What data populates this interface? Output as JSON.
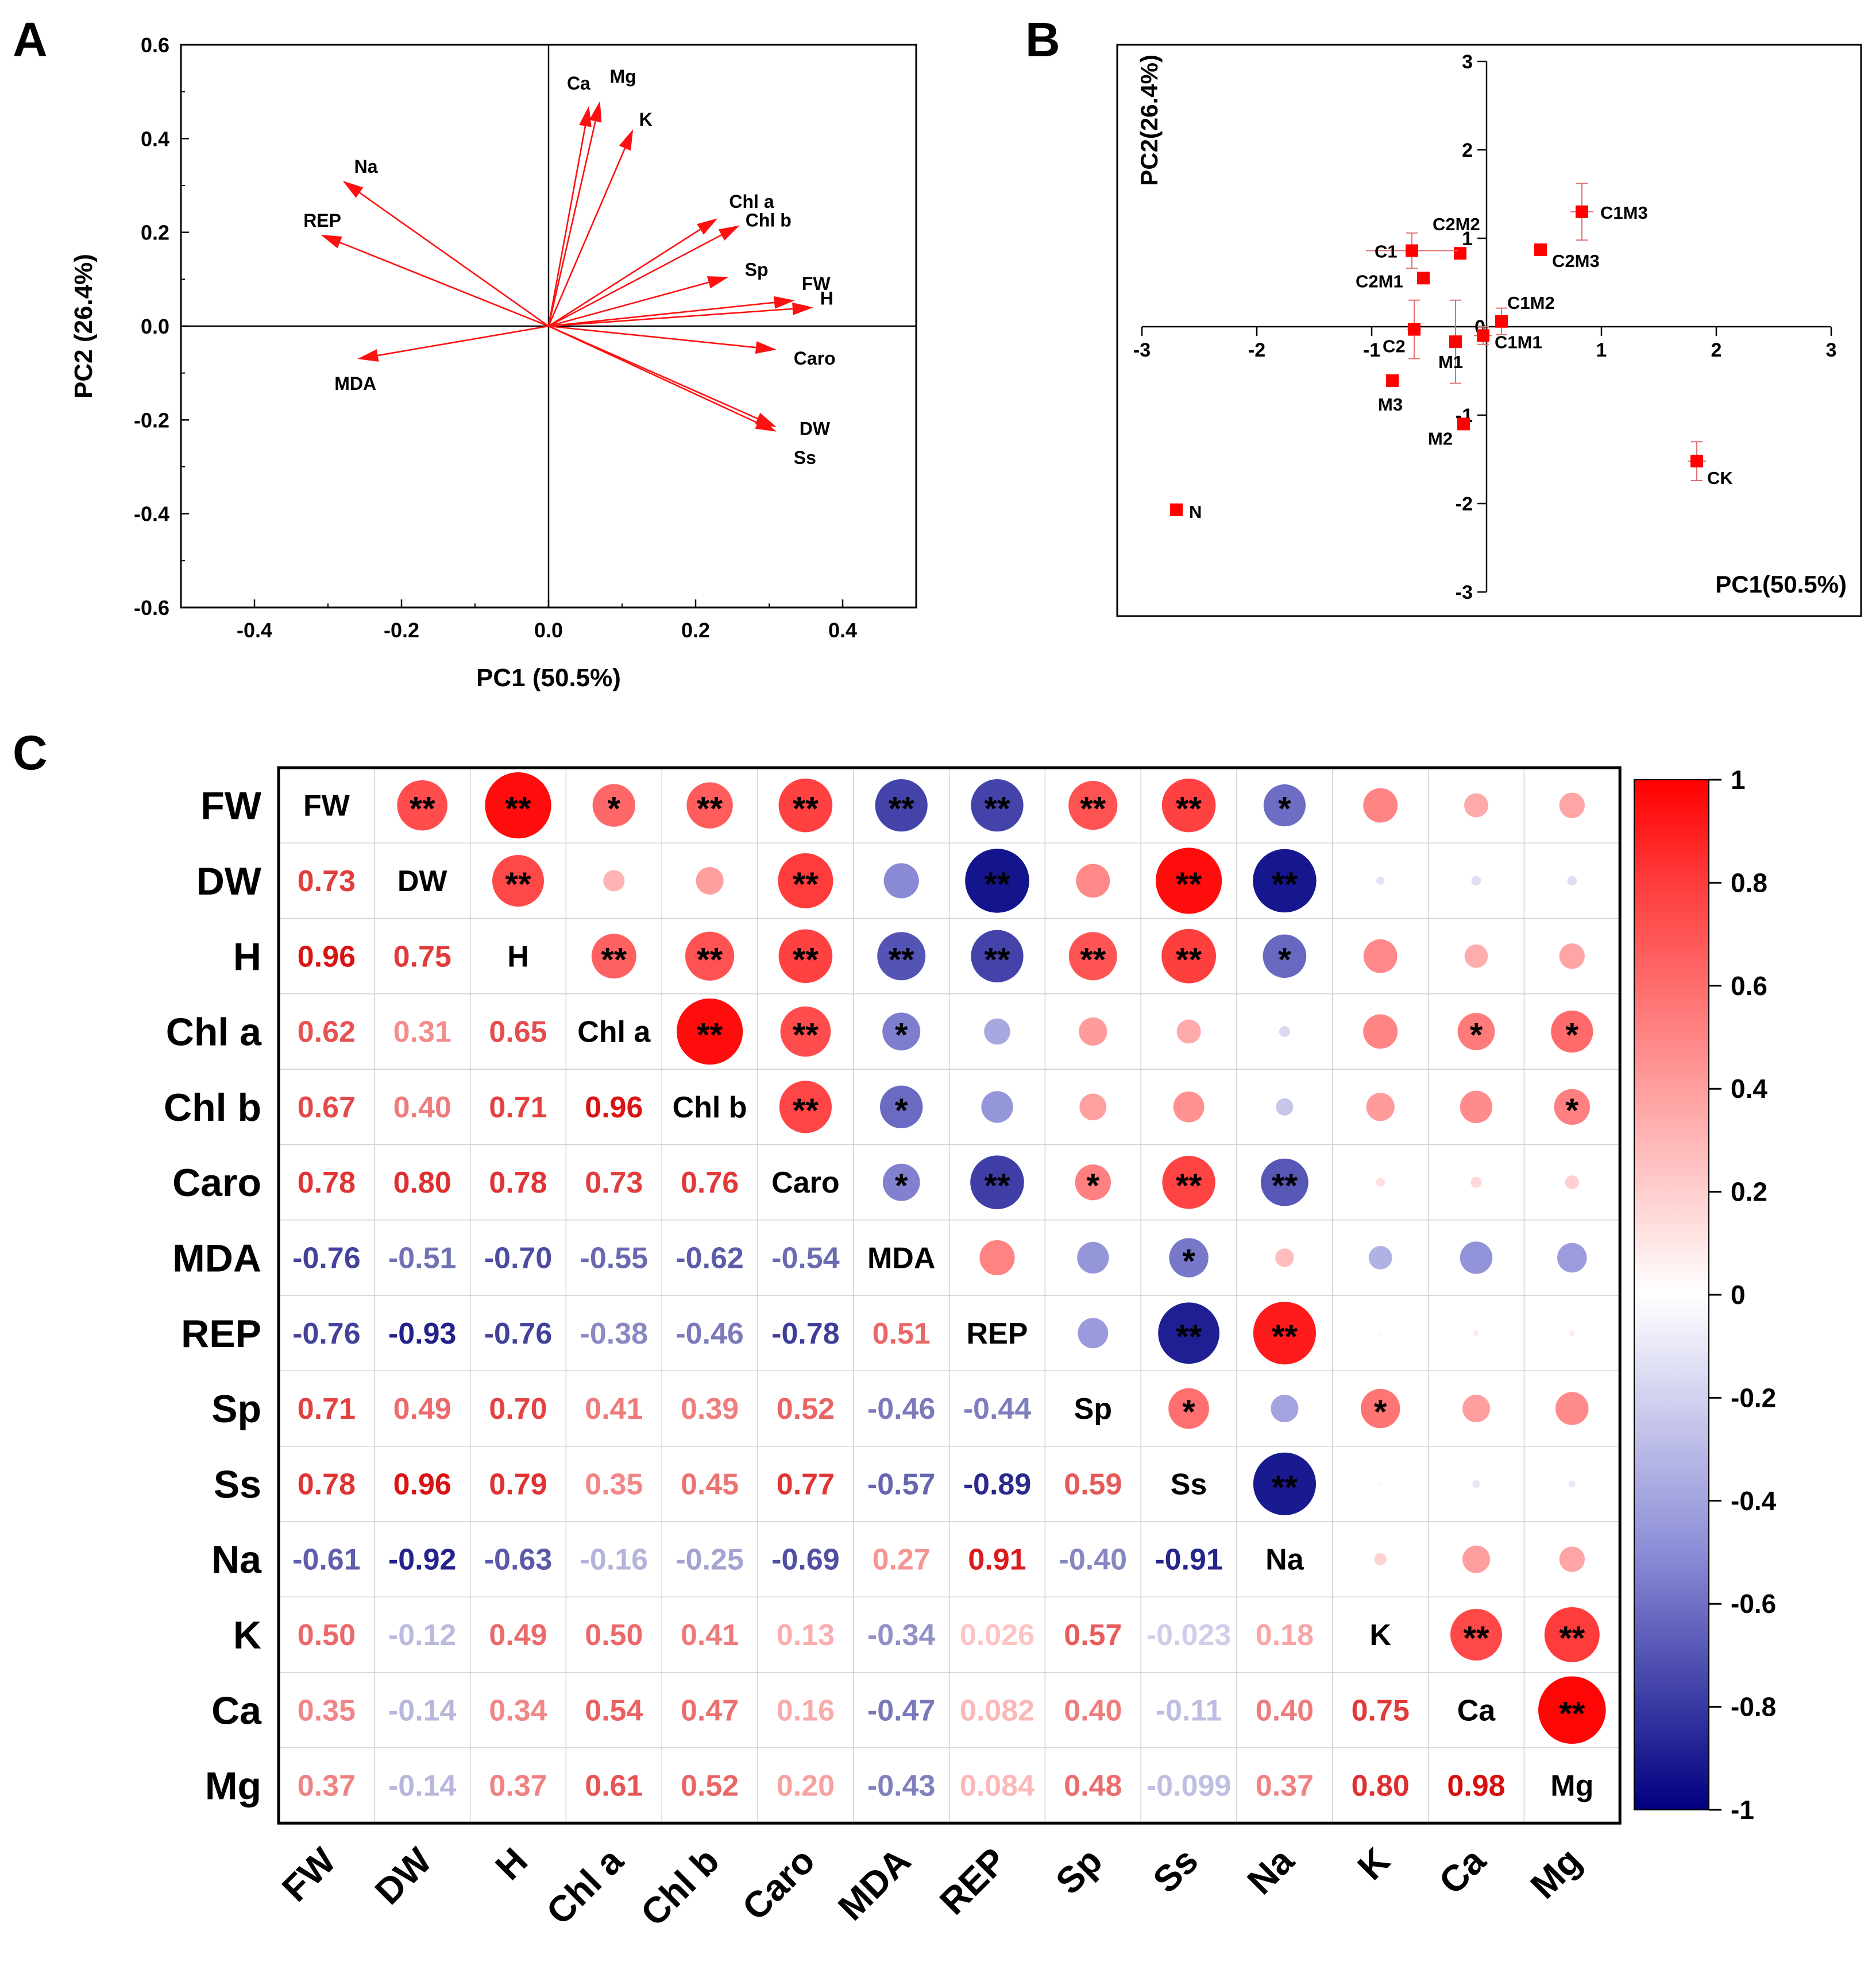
{
  "chart_data": [
    {
      "panel": "A",
      "type": "biplot-vectors",
      "xlabel": "PC1 (50.5%)",
      "ylabel": "PC2 (26.4%)",
      "xlim": [
        -0.5,
        0.5
      ],
      "ylim": [
        -0.6,
        0.6
      ],
      "xticks": [
        -0.4,
        -0.2,
        0.0,
        0.2,
        0.4
      ],
      "xtick_labels": [
        "-0.4",
        "-0.2",
        "0.0",
        "0.2",
        "0.4"
      ],
      "yticks": [
        -0.6,
        -0.4,
        -0.2,
        0.0,
        0.2,
        0.4,
        0.6
      ],
      "ytick_labels": [
        "-0.6",
        "-0.4",
        "-0.2",
        "0.0",
        "0.2",
        "0.4",
        "0.6"
      ],
      "vectors": [
        {
          "label": "Ca",
          "x": 0.055,
          "y": 0.47
        },
        {
          "label": "Mg",
          "x": 0.07,
          "y": 0.48
        },
        {
          "label": "K",
          "x": 0.115,
          "y": 0.42
        },
        {
          "label": "Na",
          "x": -0.28,
          "y": 0.31
        },
        {
          "label": "REP",
          "x": -0.31,
          "y": 0.195
        },
        {
          "label": "Chl a",
          "x": 0.23,
          "y": 0.23
        },
        {
          "label": "Chl b",
          "x": 0.26,
          "y": 0.215
        },
        {
          "label": "Sp",
          "x": 0.245,
          "y": 0.105
        },
        {
          "label": "FW",
          "x": 0.335,
          "y": 0.055
        },
        {
          "label": "H",
          "x": 0.36,
          "y": 0.04
        },
        {
          "label": "Caro",
          "x": 0.31,
          "y": -0.05
        },
        {
          "label": "MDA",
          "x": -0.26,
          "y": -0.07
        },
        {
          "label": "DW",
          "x": 0.31,
          "y": -0.215
        },
        {
          "label": "Ss",
          "x": 0.31,
          "y": -0.225
        }
      ]
    },
    {
      "panel": "B",
      "type": "scatter",
      "xlabel": "PC1(50.5%)",
      "ylabel": "PC2(26.4%)",
      "xlim": [
        -3,
        3
      ],
      "ylim": [
        -3,
        3
      ],
      "xticks": [
        -3,
        -2,
        -1,
        0,
        1,
        2,
        3
      ],
      "xtick_labels": [
        "-3",
        "-2",
        "-1",
        "0",
        "1",
        "2",
        "3"
      ],
      "yticks": [
        -3,
        -2,
        -1,
        0,
        1,
        2,
        3
      ],
      "ytick_labels": [
        "-3",
        "-2",
        "-1",
        "0",
        "1",
        "2",
        "3"
      ],
      "points": [
        {
          "label": "C1M3",
          "x": 0.83,
          "y": 1.3,
          "xerr": 0.1,
          "yerr": 0.32
        },
        {
          "label": "C2M3",
          "x": 0.47,
          "y": 0.87,
          "xerr": 0.03,
          "yerr": 0.03
        },
        {
          "label": "C2M2",
          "x": -0.23,
          "y": 0.83,
          "xerr": 0.04,
          "yerr": 0.06
        },
        {
          "label": "C1",
          "x": -0.65,
          "y": 0.86,
          "xerr": 0.4,
          "yerr": 0.2
        },
        {
          "label": "C2M1",
          "x": -0.55,
          "y": 0.55,
          "xerr": 0.03,
          "yerr": 0.03
        },
        {
          "label": "C1M2",
          "x": 0.13,
          "y": 0.06,
          "xerr": 0.03,
          "yerr": 0.15
        },
        {
          "label": "C2",
          "x": -0.63,
          "y": -0.03,
          "xerr": 0.06,
          "yerr": 0.33
        },
        {
          "label": "M1",
          "x": -0.27,
          "y": -0.17,
          "xerr": 0.04,
          "yerr": 0.47
        },
        {
          "label": "C1M1",
          "x": -0.03,
          "y": -0.1,
          "xerr": 0.08,
          "yerr": 0.1
        },
        {
          "label": "M3",
          "x": -0.82,
          "y": -0.61,
          "xerr": 0.04,
          "yerr": 0.04
        },
        {
          "label": "M2",
          "x": -0.2,
          "y": -1.1,
          "xerr": 0.03,
          "yerr": 0.03
        },
        {
          "label": "CK",
          "x": 1.83,
          "y": -1.52,
          "xerr": 0.08,
          "yerr": 0.22
        },
        {
          "label": "N",
          "x": -2.7,
          "y": -2.07,
          "xerr": 0.03,
          "yerr": 0.03
        }
      ]
    },
    {
      "panel": "C",
      "type": "heatmap",
      "variables": [
        "FW",
        "DW",
        "H",
        "Chl a",
        "Chl b",
        "Caro",
        "MDA",
        "REP",
        "Sp",
        "Ss",
        "Na",
        "K",
        "Ca",
        "Mg"
      ],
      "lower_text": [
        [],
        [
          "0.73"
        ],
        [
          "0.96",
          "0.75"
        ],
        [
          "0.62",
          "0.31",
          "0.65"
        ],
        [
          "0.67",
          "0.40",
          "0.71",
          "0.96"
        ],
        [
          "0.78",
          "0.80",
          "0.78",
          "0.73",
          "0.76"
        ],
        [
          "-0.76",
          "-0.51",
          "-0.70",
          "-0.55",
          "-0.62",
          "-0.54"
        ],
        [
          "-0.76",
          "-0.93",
          "-0.76",
          "-0.38",
          "-0.46",
          "-0.78",
          "0.51"
        ],
        [
          "0.71",
          "0.49",
          "0.70",
          "0.41",
          "0.39",
          "0.52",
          "-0.46",
          "-0.44"
        ],
        [
          "0.78",
          "0.96",
          "0.79",
          "0.35",
          "0.45",
          "0.77",
          "-0.57",
          "-0.89",
          "0.59"
        ],
        [
          "-0.61",
          "-0.92",
          "-0.63",
          "-0.16",
          "-0.25",
          "-0.69",
          "0.27",
          "0.91",
          "-0.40",
          "-0.91"
        ],
        [
          "0.50",
          "-0.12",
          "0.49",
          "0.50",
          "0.41",
          "0.13",
          "-0.34",
          "0.026",
          "0.57",
          "-0.023",
          "0.18"
        ],
        [
          "0.35",
          "-0.14",
          "0.34",
          "0.54",
          "0.47",
          "0.16",
          "-0.47",
          "0.082",
          "0.40",
          "-0.11",
          "0.40",
          "0.75"
        ],
        [
          "0.37",
          "-0.14",
          "0.37",
          "0.61",
          "0.52",
          "0.20",
          "-0.43",
          "0.084",
          "0.48",
          "-0.099",
          "0.37",
          "0.80",
          "0.98"
        ]
      ],
      "upper_stars": [
        [
          "",
          "**",
          "**",
          "*",
          "**",
          "**",
          "**",
          "**",
          "**",
          "**",
          "*",
          "",
          "",
          ""
        ],
        [
          "",
          "",
          "**",
          "",
          "",
          "**",
          "",
          "**",
          "",
          "**",
          "**",
          "",
          "",
          ""
        ],
        [
          "",
          "",
          "",
          "**",
          "**",
          "**",
          "**",
          "**",
          "**",
          "**",
          "*",
          "",
          "",
          ""
        ],
        [
          "",
          "",
          "",
          "",
          "**",
          "**",
          "*",
          "",
          "",
          "",
          "",
          "",
          "*",
          "*"
        ],
        [
          "",
          "",
          "",
          "",
          "",
          "**",
          "*",
          "",
          "",
          "",
          "",
          "",
          "",
          "*"
        ],
        [
          "",
          "",
          "",
          "",
          "",
          "",
          "*",
          "**",
          "*",
          "**",
          "**",
          "",
          "",
          ""
        ],
        [
          "",
          "",
          "",
          "",
          "",
          "",
          "",
          "",
          "",
          "*",
          "",
          "",
          "",
          ""
        ],
        [
          "",
          "",
          "",
          "",
          "",
          "",
          "",
          "",
          "",
          "**",
          "**",
          "",
          "",
          ""
        ],
        [
          "",
          "",
          "",
          "",
          "",
          "",
          "",
          "",
          "",
          "*",
          "",
          "*",
          "",
          ""
        ],
        [
          "",
          "",
          "",
          "",
          "",
          "",
          "",
          "",
          "",
          "",
          "**",
          "",
          "",
          ""
        ],
        [
          "",
          "",
          "",
          "",
          "",
          "",
          "",
          "",
          "",
          "",
          "",
          "",
          "",
          ""
        ],
        [
          "",
          "",
          "",
          "",
          "",
          "",
          "",
          "",
          "",
          "",
          "",
          "",
          "**",
          "**"
        ],
        [
          "",
          "",
          "",
          "",
          "",
          "",
          "",
          "",
          "",
          "",
          "",
          "",
          "",
          "**"
        ],
        [
          "",
          "",
          "",
          "",
          "",
          "",
          "",
          "",
          "",
          "",
          "",
          "",
          "",
          ""
        ]
      ],
      "colorbar_ticks": [
        1,
        0.8,
        0.6,
        0.4,
        0.2,
        0,
        -0.2,
        -0.4,
        -0.6,
        -0.8,
        -1
      ],
      "colorbar_labels": [
        "1",
        "0.8",
        "0.6",
        "0.4",
        "0.2",
        "0",
        "-0.2",
        "-0.4",
        "-0.6",
        "-0.8",
        "-1"
      ],
      "vmin": -1,
      "vmax": 1
    }
  ],
  "panel_labels": {
    "a": "A",
    "b": "B",
    "c": "C"
  },
  "colors": {
    "arrow": "#ff1010",
    "marker": "#ff0000",
    "positive": "#ff0000",
    "negative": "#000080",
    "grid": "#d0d0d0"
  }
}
